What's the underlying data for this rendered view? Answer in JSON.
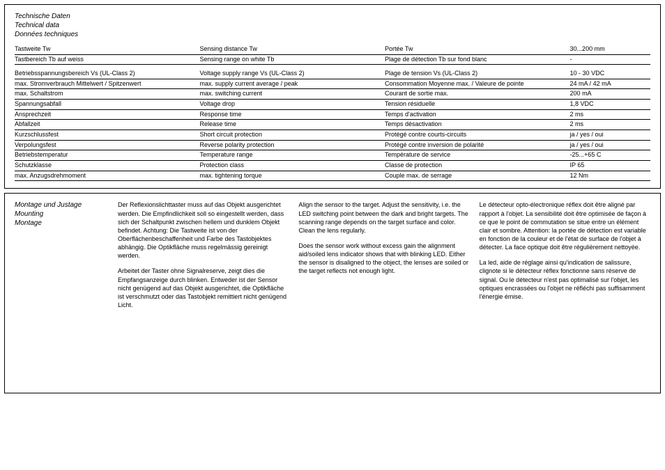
{
  "specs": {
    "titles": {
      "de": "Technische Daten",
      "en": "Technical data",
      "fr": "Données techniques"
    },
    "rows": [
      {
        "de": "Tastweite Tw",
        "en": "Sensing distance Tw",
        "fr": "Portée Tw",
        "val": "30...200 mm",
        "ruled": true
      },
      {
        "de": "Tastbereich Tb auf weiss",
        "en": "Sensing range on white Tb",
        "fr": "Plage de détection Tb sur fond blanc",
        "val": "-",
        "ruled": true
      },
      {
        "spacer": true
      },
      {
        "de": "Betriebsspannungsbereich Vs (UL-Class 2)",
        "en": "Voltage supply range Vs (UL-Class 2)",
        "fr": "Plage de tension Vs (UL-Class 2)",
        "val": "10 - 30 VDC",
        "ruled": true
      },
      {
        "de": "max. Stromverbrauch Mittelwert / Spitzenwert",
        "en": "max. supply current average / peak",
        "fr": "Consommation Moyenne max. / Valeure de pointe",
        "val": "24 mA / 42 mA",
        "ruled": true
      },
      {
        "de": "max. Schaltstrom",
        "en": "max. switching current",
        "fr": "Courant de sortie max.",
        "val": "200 mA",
        "ruled": true
      },
      {
        "de": "Spannungsabfall",
        "en": "Voltage drop",
        "fr": "Tension résiduelle",
        "val": " 1,8 VDC",
        "ruled": true
      },
      {
        "de": "Ansprechzeit",
        "en": "Response time",
        "fr": "Temps d'activation",
        "val": " 2 ms",
        "ruled": true
      },
      {
        "de": "Abfallzeit",
        "en": "Release time",
        "fr": "Temps désactivation",
        "val": " 2 ms",
        "ruled": true
      },
      {
        "de": "Kurzschlussfest",
        "en": "Short circuit protection",
        "fr": "Protégé contre courts-circuits",
        "val": "ja / yes / oui",
        "ruled": true
      },
      {
        "de": "Verpolungsfest",
        "en": "Reverse polarity protection",
        "fr": "Protégé contre inversion de polarité",
        "val": "ja / yes / oui",
        "ruled": true
      },
      {
        "de": "Betriebstemperatur",
        "en": "Temperature range",
        "fr": "Température de service",
        "val": "-25...+65  C",
        "ruled": true
      },
      {
        "de": "Schutzklasse",
        "en": "Protection class",
        "fr": "Classe de protection",
        "val": "IP 65",
        "ruled": true
      },
      {
        "de": "max. Anzugsdrehmoment",
        "en": "max. tightening torque",
        "fr": "Couple max. de serrage",
        "val": "12 Nm",
        "ruled": true
      }
    ]
  },
  "mount": {
    "titles": {
      "de": "Montage und Justage",
      "en": "Mounting",
      "fr": "Montage"
    },
    "de_p1": "Der Reflexionslichttaster muss auf das Objekt ausgerichtet werden. Die Empfindlichkeit soll so eingestellt werden, dass sich der Schaltpunkt zwischen hellem und dunklem Objekt befindet. Achtung: Die Tastweite ist von der Oberflächenbeschaffenheit und Farbe des Tastobjektes abhängig.\nDie Optikfläche muss regelmässig gereinigt werden.",
    "de_p2": "Arbeitet der Taster ohne Signalreserve, zeigt dies die Empfangsanzeige durch blinken. Entweder ist der Sensor nicht genügend auf das Objekt ausgerichtet, die Optikfläche ist verschmutzt oder das Tastobjekt remittiert nicht genügend Licht.",
    "en_p1": "Align the sensor to the target. Adjust the sensitivity, i.e. the LED switching point between the dark and bright targets. The scanning range depends on the target surface and color. Clean the lens regularly.",
    "en_p2": "Does the sensor work without excess gain the alignment aid/soiled lens indicator shows that with blinking LED. Either the sensor is disaligned to the object, the lenses are soiled or the target reflects not enough light.",
    "fr_p1": "Le détecteur opto-électronique réflex doit être aligné par rapport à l'objet. La sensibilité doit être optimisée de façon à ce que le point de commutation se situe entre un élément clair et sombre.\nAttention: la portée de détection est variable en fonction de la couleur et de l'état de surface de l'objet à détecter.\nLa face optique doit être régulièrement nettoyée.",
    "fr_p2": "La led, aide de réglage ainsi qu'indication de salissure, clignote si le détecteur réflex fonctionne sans réserve de signal. Ou le détecteur n'est pas optimalisé sur l'objet, les optiques encrassées ou l'objet ne réfléchi pas suffisamment l'énergie émise."
  }
}
